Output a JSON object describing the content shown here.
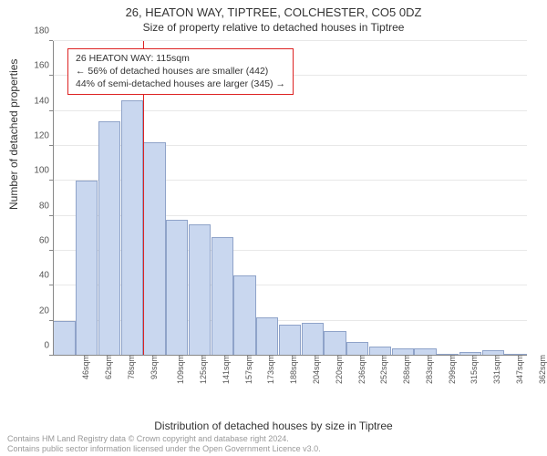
{
  "title": "26, HEATON WAY, TIPTREE, COLCHESTER, CO5 0DZ",
  "subtitle": "Size of property relative to detached houses in Tiptree",
  "y_axis_label": "Number of detached properties",
  "x_axis_label": "Distribution of detached houses by size in Tiptree",
  "chart": {
    "type": "histogram",
    "y_min": 0,
    "y_max": 180,
    "y_tick_step": 20,
    "bar_fill": "#c9d7ef",
    "bar_stroke": "#8fa3c9",
    "grid_color": "#e8e8e8",
    "background": "#ffffff",
    "marker_color": "#dd2222",
    "text_color": "#333333",
    "x_categories": [
      "46sqm",
      "62sqm",
      "78sqm",
      "93sqm",
      "109sqm",
      "125sqm",
      "141sqm",
      "157sqm",
      "173sqm",
      "188sqm",
      "204sqm",
      "220sqm",
      "236sqm",
      "252sqm",
      "268sqm",
      "283sqm",
      "299sqm",
      "315sqm",
      "331sqm",
      "347sqm",
      "362sqm"
    ],
    "values": [
      20,
      100,
      134,
      146,
      122,
      78,
      75,
      68,
      46,
      22,
      18,
      19,
      14,
      8,
      5,
      4,
      4,
      1,
      2,
      3,
      1
    ],
    "marker_after_index": 4,
    "callout_lines": [
      "26 HEATON WAY: 115sqm",
      "← 56% of detached houses are smaller (442)",
      "44% of semi-detached houses are larger (345) →"
    ]
  },
  "footer_line1": "Contains HM Land Registry data © Crown copyright and database right 2024.",
  "footer_line2": "Contains public sector information licensed under the Open Government Licence v3.0."
}
